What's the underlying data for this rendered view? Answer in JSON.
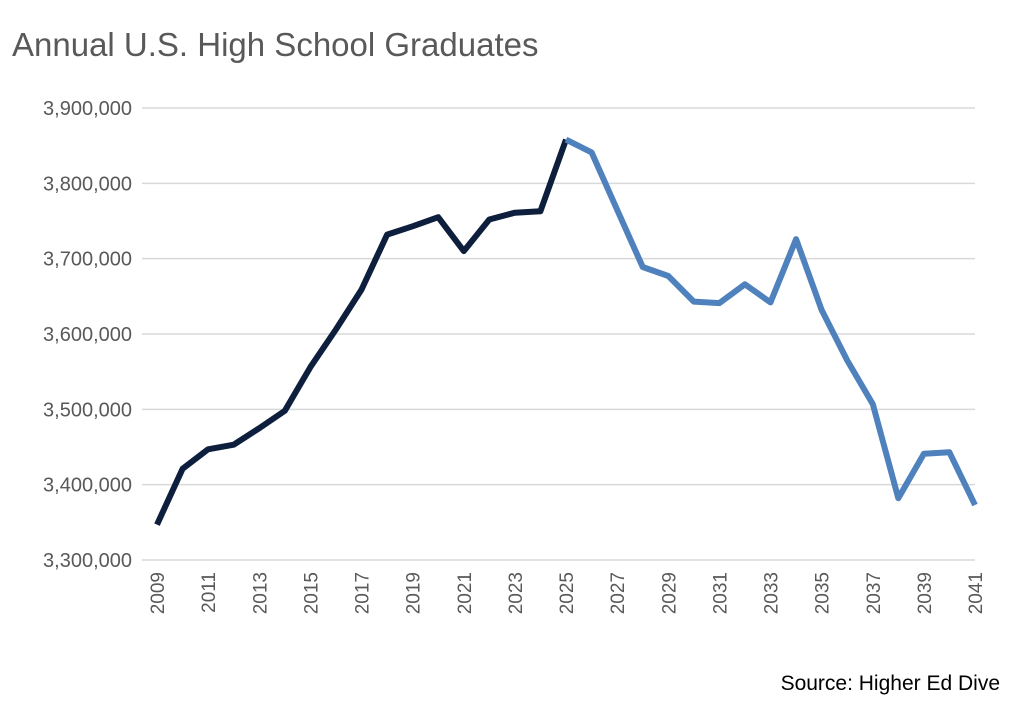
{
  "chart_data": {
    "type": "line",
    "title": "Annual U.S. High School Graduates",
    "source": "Source: Higher Ed Dive",
    "xlabel": "",
    "ylabel": "",
    "ylim": [
      3300000,
      3900000
    ],
    "yticks": [
      3300000,
      3400000,
      3500000,
      3600000,
      3700000,
      3800000,
      3900000
    ],
    "ytick_labels": [
      "3,300,000",
      "3,400,000",
      "3,500,000",
      "3,600,000",
      "3,700,000",
      "3,800,000",
      "3,900,000"
    ],
    "xlim": [
      2009,
      2041
    ],
    "xtick_labels": [
      "2009",
      "2011",
      "2013",
      "2015",
      "2017",
      "2019",
      "2021",
      "2023",
      "2025",
      "2027",
      "2029",
      "2031",
      "2033",
      "2035",
      "2037",
      "2039",
      "2041"
    ],
    "grid": true,
    "legend": "none",
    "series": [
      {
        "color": "#0d1f3d",
        "x": [
          2009,
          2010,
          2011,
          2012,
          2013,
          2014,
          2015,
          2016,
          2017,
          2018,
          2019,
          2020,
          2021,
          2022,
          2023,
          2024,
          2025
        ],
        "values": [
          3347000,
          3421000,
          3447000,
          3453000,
          3475000,
          3498000,
          3556000,
          3606000,
          3659000,
          3732000,
          3743000,
          3755000,
          3710000,
          3752000,
          3761000,
          3763000,
          3858000
        ]
      },
      {
        "color": "#4f81bd",
        "x": [
          2025,
          2026,
          2027,
          2028,
          2029,
          2030,
          2031,
          2032,
          2033,
          2034,
          2035,
          2036,
          2037,
          2038,
          2039,
          2040,
          2041
        ],
        "values": [
          3858000,
          3841000,
          3765000,
          3689000,
          3677000,
          3643000,
          3641000,
          3666000,
          3642000,
          3726000,
          3632000,
          3565000,
          3507000,
          3382000,
          3441000,
          3443000,
          3373000
        ]
      }
    ]
  }
}
